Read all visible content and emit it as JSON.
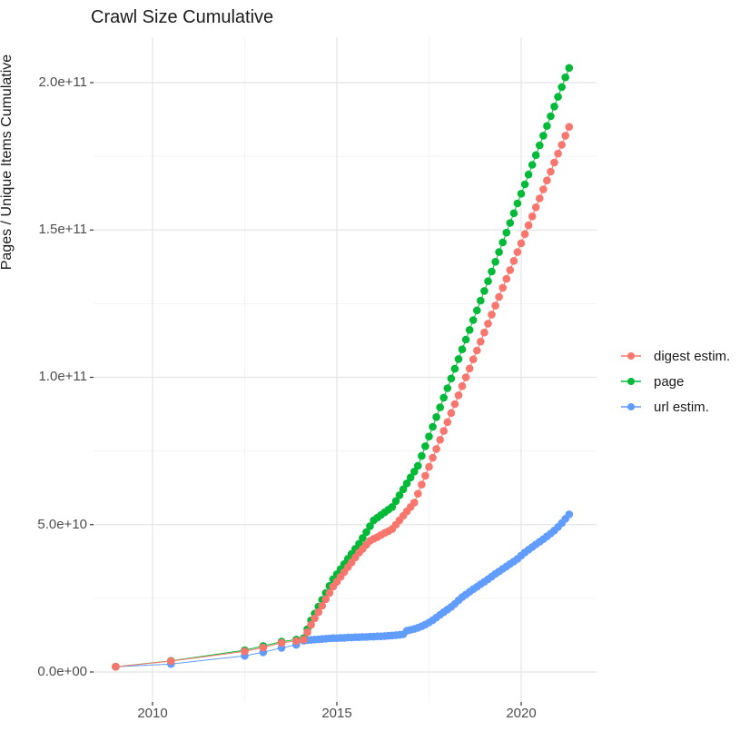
{
  "title": "Crawl Size Cumulative",
  "y_axis": {
    "label": "Pages / Unique Items Cumulative",
    "ticks": [
      "0.0e+00",
      "5.0e+10",
      "1.0e+11",
      "1.5e+11",
      "2.0e+11"
    ]
  },
  "x_axis": {
    "ticks": [
      "2010",
      "2015",
      "2020"
    ]
  },
  "legend": {
    "items": [
      {
        "label": "digest estim.",
        "color": "#F8766D"
      },
      {
        "label": "page",
        "color": "#00BA38"
      },
      {
        "label": "url estim.",
        "color": "#619CFF"
      }
    ]
  },
  "chart_data": {
    "type": "scatter",
    "title": "Crawl Size Cumulative",
    "xlabel": "",
    "ylabel": "Pages / Unique Items Cumulative",
    "xlim": [
      2008.4,
      2022.0
    ],
    "ylim": [
      0,
      215000000000.0
    ],
    "x_ticks": [
      2010,
      2015,
      2020
    ],
    "x_minor_ticks": [
      2012.5,
      2017.5
    ],
    "y_ticks": [
      0,
      50000000000.0,
      100000000000.0,
      150000000000.0,
      200000000000.0
    ],
    "y_minor_ticks": [
      25000000000.0,
      75000000000.0,
      125000000000.0,
      175000000000.0
    ],
    "grid": true,
    "legend_position": "right",
    "marker_radius": 4.3,
    "series": [
      {
        "name": "digest estim.",
        "color": "#F8766D",
        "points": [
          [
            2009.0,
            1800000000.0
          ],
          [
            2010.5,
            3700000000.0
          ],
          [
            2012.5,
            7000000000.0
          ],
          [
            2013.0,
            8300000000.0
          ],
          [
            2013.5,
            9900000000.0
          ],
          [
            2013.9,
            10500000000.0
          ],
          [
            2014.1,
            11000000000.0
          ],
          [
            2014.2,
            13500000000.0
          ],
          [
            2014.3,
            16000000000.0
          ],
          [
            2014.4,
            18200000000.0
          ],
          [
            2014.5,
            20300000000.0
          ],
          [
            2014.6,
            22500000000.0
          ],
          [
            2014.7,
            24700000000.0
          ],
          [
            2014.8,
            26800000000.0
          ],
          [
            2014.9,
            29000000000.0
          ],
          [
            2015.0,
            30600000000.0
          ],
          [
            2015.1,
            32300000000.0
          ],
          [
            2015.2,
            33900000000.0
          ],
          [
            2015.3,
            35600000000.0
          ],
          [
            2015.4,
            37200000000.0
          ],
          [
            2015.5,
            38900000000.0
          ],
          [
            2015.6,
            40500000000.0
          ],
          [
            2015.7,
            41800000000.0
          ],
          [
            2015.8,
            43200000000.0
          ],
          [
            2015.9,
            44500000000.0
          ],
          [
            2016.0,
            45200000000.0
          ],
          [
            2016.1,
            45800000000.0
          ],
          [
            2016.2,
            46500000000.0
          ],
          [
            2016.3,
            47200000000.0
          ],
          [
            2016.4,
            47800000000.0
          ],
          [
            2016.5,
            48500000000.0
          ],
          [
            2016.6,
            50000000000.0
          ],
          [
            2016.7,
            51500000000.0
          ],
          [
            2016.8,
            53000000000.0
          ],
          [
            2016.9,
            54500000000.0
          ],
          [
            2017.0,
            56000000000.0
          ],
          [
            2017.1,
            57500000000.0
          ],
          [
            2017.2,
            60500000000.0
          ],
          [
            2017.3,
            63600000000.0
          ],
          [
            2017.4,
            66600000000.0
          ],
          [
            2017.5,
            69600000000.0
          ],
          [
            2017.6,
            72700000000.0
          ],
          [
            2017.7,
            75700000000.0
          ],
          [
            2017.8,
            78800000000.0
          ],
          [
            2017.9,
            81800000000.0
          ],
          [
            2018.0,
            84800000000.0
          ],
          [
            2018.1,
            87900000000.0
          ],
          [
            2018.2,
            90900000000.0
          ],
          [
            2018.3,
            93900000000.0
          ],
          [
            2018.4,
            97000000000.0
          ],
          [
            2018.5,
            100000000000.0
          ],
          [
            2018.6,
            103000000000.0
          ],
          [
            2018.7,
            106100000000.0
          ],
          [
            2018.8,
            109100000000.0
          ],
          [
            2018.9,
            112100000000.0
          ],
          [
            2019.0,
            115200000000.0
          ],
          [
            2019.1,
            118200000000.0
          ],
          [
            2019.2,
            121300000000.0
          ],
          [
            2019.3,
            124300000000.0
          ],
          [
            2019.4,
            127300000000.0
          ],
          [
            2019.5,
            130400000000.0
          ],
          [
            2019.6,
            133400000000.0
          ],
          [
            2019.7,
            136400000000.0
          ],
          [
            2019.8,
            139500000000.0
          ],
          [
            2019.9,
            142500000000.0
          ],
          [
            2020.0,
            145500000000.0
          ],
          [
            2020.1,
            148600000000.0
          ],
          [
            2020.2,
            151600000000.0
          ],
          [
            2020.3,
            154600000000.0
          ],
          [
            2020.4,
            157700000000.0
          ],
          [
            2020.5,
            160700000000.0
          ],
          [
            2020.6,
            163800000000.0
          ],
          [
            2020.7,
            166800000000.0
          ],
          [
            2020.8,
            169800000000.0
          ],
          [
            2020.9,
            172900000000.0
          ],
          [
            2021.0,
            175900000000.0
          ],
          [
            2021.1,
            178900000000.0
          ],
          [
            2021.2,
            182000000000.0
          ],
          [
            2021.3,
            185000000000.0
          ]
        ]
      },
      {
        "name": "page",
        "color": "#00BA38",
        "points": [
          [
            2009.0,
            1800000000.0
          ],
          [
            2010.5,
            3800000000.0
          ],
          [
            2012.5,
            7400000000.0
          ],
          [
            2013.0,
            8800000000.0
          ],
          [
            2013.5,
            10300000000.0
          ],
          [
            2013.9,
            11000000000.0
          ],
          [
            2014.1,
            11500000000.0
          ],
          [
            2014.2,
            14500000000.0
          ],
          [
            2014.3,
            17500000000.0
          ],
          [
            2014.4,
            19800000000.0
          ],
          [
            2014.5,
            22200000000.0
          ],
          [
            2014.6,
            24500000000.0
          ],
          [
            2014.7,
            26800000000.0
          ],
          [
            2014.8,
            29200000000.0
          ],
          [
            2014.9,
            31500000000.0
          ],
          [
            2015.0,
            33200000000.0
          ],
          [
            2015.1,
            34900000000.0
          ],
          [
            2015.2,
            36600000000.0
          ],
          [
            2015.3,
            38400000000.0
          ],
          [
            2015.4,
            40100000000.0
          ],
          [
            2015.5,
            41800000000.0
          ],
          [
            2015.6,
            43500000000.0
          ],
          [
            2015.7,
            45500000000.0
          ],
          [
            2015.8,
            47500000000.0
          ],
          [
            2015.9,
            49500000000.0
          ],
          [
            2016.0,
            51500000000.0
          ],
          [
            2016.1,
            52400000000.0
          ],
          [
            2016.2,
            53300000000.0
          ],
          [
            2016.3,
            54200000000.0
          ],
          [
            2016.4,
            55100000000.0
          ],
          [
            2016.5,
            56000000000.0
          ],
          [
            2016.6,
            58000000000.0
          ],
          [
            2016.7,
            60000000000.0
          ],
          [
            2016.8,
            62000000000.0
          ],
          [
            2016.9,
            64000000000.0
          ],
          [
            2017.0,
            66000000000.0
          ],
          [
            2017.1,
            68000000000.0
          ],
          [
            2017.2,
            70000000000.0
          ],
          [
            2017.3,
            73300000000.0
          ],
          [
            2017.4,
            76600000000.0
          ],
          [
            2017.5,
            79900000000.0
          ],
          [
            2017.6,
            83200000000.0
          ],
          [
            2017.7,
            86500000000.0
          ],
          [
            2017.8,
            89800000000.0
          ],
          [
            2017.9,
            93100000000.0
          ],
          [
            2018.0,
            96300000000.0
          ],
          [
            2018.1,
            99600000000.0
          ],
          [
            2018.2,
            102900000000.0
          ],
          [
            2018.3,
            106200000000.0
          ],
          [
            2018.4,
            109500000000.0
          ],
          [
            2018.5,
            112800000000.0
          ],
          [
            2018.6,
            116100000000.0
          ],
          [
            2018.7,
            119400000000.0
          ],
          [
            2018.8,
            122700000000.0
          ],
          [
            2018.9,
            126000000000.0
          ],
          [
            2019.0,
            129300000000.0
          ],
          [
            2019.1,
            132600000000.0
          ],
          [
            2019.2,
            135900000000.0
          ],
          [
            2019.3,
            139200000000.0
          ],
          [
            2019.4,
            142500000000.0
          ],
          [
            2019.5,
            145800000000.0
          ],
          [
            2019.6,
            149100000000.0
          ],
          [
            2019.7,
            152400000000.0
          ],
          [
            2019.8,
            155700000000.0
          ],
          [
            2019.9,
            159000000000.0
          ],
          [
            2020.0,
            162300000000.0
          ],
          [
            2020.1,
            165500000000.0
          ],
          [
            2020.2,
            168800000000.0
          ],
          [
            2020.3,
            172100000000.0
          ],
          [
            2020.4,
            175400000000.0
          ],
          [
            2020.5,
            178700000000.0
          ],
          [
            2020.6,
            182000000000.0
          ],
          [
            2020.7,
            185300000000.0
          ],
          [
            2020.8,
            188600000000.0
          ],
          [
            2020.9,
            191900000000.0
          ],
          [
            2021.0,
            195200000000.0
          ],
          [
            2021.1,
            198500000000.0
          ],
          [
            2021.2,
            201800000000.0
          ],
          [
            2021.3,
            205000000000.0
          ]
        ]
      },
      {
        "name": "url estim.",
        "color": "#619CFF",
        "points": [
          [
            2009.0,
            1800000000.0
          ],
          [
            2010.5,
            2700000000.0
          ],
          [
            2012.5,
            5500000000.0
          ],
          [
            2013.0,
            6700000000.0
          ],
          [
            2013.5,
            8200000000.0
          ],
          [
            2013.9,
            9200000000.0
          ],
          [
            2014.1,
            10600000000.0
          ],
          [
            2014.2,
            10800000000.0
          ],
          [
            2014.3,
            10900000000.0
          ],
          [
            2014.4,
            11000000000.0
          ],
          [
            2014.5,
            11100000000.0
          ],
          [
            2014.6,
            11200000000.0
          ],
          [
            2014.7,
            11300000000.0
          ],
          [
            2014.8,
            11400000000.0
          ],
          [
            2014.9,
            11500000000.0
          ],
          [
            2015.0,
            11500000000.0
          ],
          [
            2015.1,
            11600000000.0
          ],
          [
            2015.2,
            11600000000.0
          ],
          [
            2015.3,
            11700000000.0
          ],
          [
            2015.4,
            11700000000.0
          ],
          [
            2015.5,
            11800000000.0
          ],
          [
            2015.6,
            11800000000.0
          ],
          [
            2015.7,
            11900000000.0
          ],
          [
            2015.8,
            11900000000.0
          ],
          [
            2015.9,
            12000000000.0
          ],
          [
            2016.0,
            12000000000.0
          ],
          [
            2016.1,
            12100000000.0
          ],
          [
            2016.2,
            12100000000.0
          ],
          [
            2016.3,
            12200000000.0
          ],
          [
            2016.4,
            12300000000.0
          ],
          [
            2016.5,
            12400000000.0
          ],
          [
            2016.6,
            12500000000.0
          ],
          [
            2016.7,
            12600000000.0
          ],
          [
            2016.8,
            12800000000.0
          ],
          [
            2016.9,
            14000000000.0
          ],
          [
            2017.0,
            14300000000.0
          ],
          [
            2017.1,
            14600000000.0
          ],
          [
            2017.2,
            15000000000.0
          ],
          [
            2017.3,
            15500000000.0
          ],
          [
            2017.4,
            16100000000.0
          ],
          [
            2017.5,
            16800000000.0
          ],
          [
            2017.6,
            17600000000.0
          ],
          [
            2017.7,
            18500000000.0
          ],
          [
            2017.8,
            19400000000.0
          ],
          [
            2017.9,
            20300000000.0
          ],
          [
            2018.0,
            21200000000.0
          ],
          [
            2018.1,
            22100000000.0
          ],
          [
            2018.2,
            23100000000.0
          ],
          [
            2018.3,
            24300000000.0
          ],
          [
            2018.4,
            25400000000.0
          ],
          [
            2018.5,
            26300000000.0
          ],
          [
            2018.6,
            27200000000.0
          ],
          [
            2018.7,
            28100000000.0
          ],
          [
            2018.8,
            28900000000.0
          ],
          [
            2018.9,
            29800000000.0
          ],
          [
            2019.0,
            30600000000.0
          ],
          [
            2019.1,
            31500000000.0
          ],
          [
            2019.2,
            32400000000.0
          ],
          [
            2019.3,
            33300000000.0
          ],
          [
            2019.4,
            34100000000.0
          ],
          [
            2019.5,
            35000000000.0
          ],
          [
            2019.6,
            35800000000.0
          ],
          [
            2019.7,
            36700000000.0
          ],
          [
            2019.8,
            37500000000.0
          ],
          [
            2019.9,
            38400000000.0
          ],
          [
            2020.0,
            39500000000.0
          ],
          [
            2020.1,
            40600000000.0
          ],
          [
            2020.2,
            41500000000.0
          ],
          [
            2020.3,
            42400000000.0
          ],
          [
            2020.4,
            43300000000.0
          ],
          [
            2020.5,
            44200000000.0
          ],
          [
            2020.6,
            45100000000.0
          ],
          [
            2020.7,
            46000000000.0
          ],
          [
            2020.8,
            47000000000.0
          ],
          [
            2020.9,
            48000000000.0
          ],
          [
            2021.0,
            49200000000.0
          ],
          [
            2021.1,
            50500000000.0
          ],
          [
            2021.2,
            52000000000.0
          ],
          [
            2021.3,
            53500000000.0
          ]
        ]
      }
    ]
  }
}
